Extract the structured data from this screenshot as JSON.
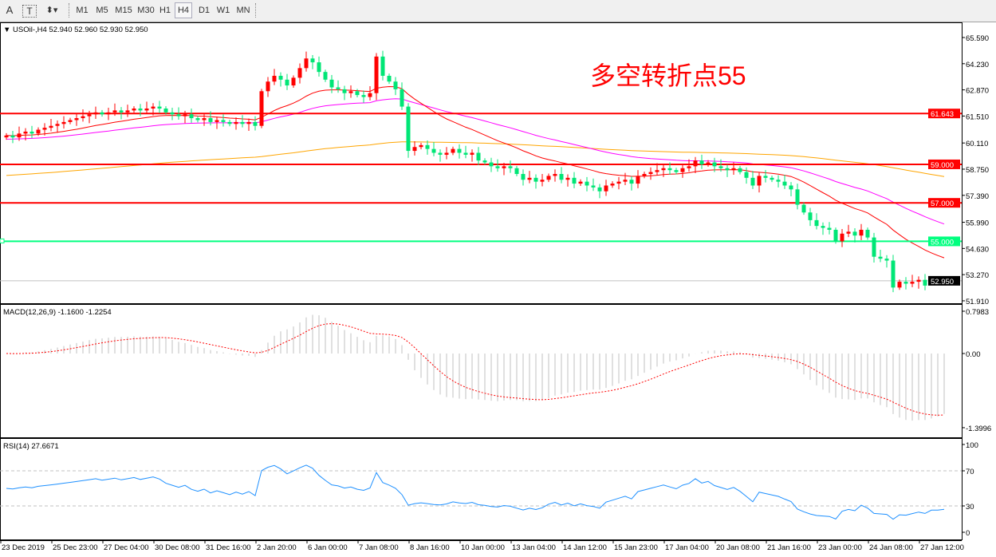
{
  "toolbar": {
    "tools": [
      {
        "label": "A",
        "icon": "text-icon"
      },
      {
        "label": "T",
        "icon": "text-label-icon"
      },
      {
        "label": "",
        "icon": "arrows-dropdown-icon"
      }
    ],
    "timeframes": [
      "M1",
      "M5",
      "M15",
      "M30",
      "H1",
      "H4",
      "D1",
      "W1",
      "MN"
    ],
    "active_timeframe": "H4"
  },
  "main": {
    "header": "USOil-,H4  52.940 52.960 52.930 52.950",
    "annotation": "多空转折点55",
    "annotation_color": "#ff0000",
    "current_price": "52.950",
    "price_ticks": [
      "65.590",
      "64.230",
      "62.870",
      "61.510",
      "60.110",
      "58.750",
      "57.390",
      "55.990",
      "54.630",
      "53.270",
      "51.910"
    ],
    "levels": [
      {
        "value": 61.643,
        "label": "61.643",
        "color": "#ff0000"
      },
      {
        "value": 59.0,
        "label": "59.000",
        "color": "#ff0000"
      },
      {
        "value": 57.0,
        "label": "57.000",
        "color": "#ff0000"
      },
      {
        "value": 55.0,
        "label": "55.000",
        "color": "#00ff7f"
      }
    ],
    "up_color": "#ff0000",
    "down_color": "#00e676"
  },
  "macd": {
    "header": "MACD(12,26,9) -1.1600 -1.2254",
    "ticks": [
      "0.7983",
      "0.00",
      "-1.3996"
    ]
  },
  "rsi": {
    "header": "RSI(14) 27.6671",
    "ticks": [
      "100",
      "70",
      "30",
      "0"
    ]
  },
  "time_axis": [
    "23 Dec 2019",
    "25 Dec 23:00",
    "27 Dec 04:00",
    "30 Dec 08:00",
    "31 Dec 16:00",
    "2 Jan 20:00",
    "6 Jan 00:00",
    "7 Jan 08:00",
    "8 Jan 16:00",
    "10 Jan 00:00",
    "13 Jan 04:00",
    "14 Jan 12:00",
    "15 Jan 23:00",
    "17 Jan 04:00",
    "20 Jan 08:00",
    "21 Jan 16:00",
    "23 Jan 00:00",
    "24 Jan 08:00",
    "27 Jan 12:00"
  ],
  "chart_data": {
    "type": "candlestick",
    "symbol": "USOil-",
    "timeframe": "H4",
    "ylim": [
      51.91,
      65.59
    ],
    "closes": [
      60.5,
      60.4,
      60.6,
      60.7,
      60.6,
      60.8,
      60.9,
      61.0,
      61.1,
      61.2,
      61.3,
      61.4,
      61.5,
      61.6,
      61.7,
      61.6,
      61.7,
      61.8,
      61.7,
      61.8,
      61.9,
      61.8,
      61.9,
      62.0,
      61.9,
      61.7,
      61.6,
      61.5,
      61.6,
      61.4,
      61.3,
      61.4,
      61.2,
      61.3,
      61.2,
      61.1,
      61.2,
      61.1,
      61.2,
      61.0,
      62.8,
      63.3,
      63.6,
      63.4,
      63.1,
      63.5,
      64.0,
      64.5,
      64.3,
      63.8,
      63.4,
      63.0,
      62.9,
      62.7,
      62.8,
      62.6,
      62.5,
      62.7,
      64.6,
      63.6,
      63.3,
      62.9,
      62.0,
      59.7,
      59.9,
      60.0,
      59.8,
      59.6,
      59.5,
      59.6,
      59.8,
      59.6,
      59.5,
      59.6,
      59.2,
      59.1,
      58.9,
      58.8,
      58.9,
      58.8,
      58.5,
      58.2,
      58.3,
      58.1,
      58.2,
      58.4,
      58.5,
      58.2,
      58.3,
      58.0,
      58.1,
      57.9,
      57.8,
      57.6,
      57.9,
      58.0,
      58.1,
      58.2,
      58.0,
      58.4,
      58.5,
      58.6,
      58.7,
      58.8,
      58.7,
      58.6,
      58.8,
      58.9,
      59.2,
      59.0,
      59.1,
      58.9,
      58.8,
      58.7,
      58.8,
      58.6,
      58.3,
      57.9,
      58.4,
      58.3,
      58.2,
      58.1,
      57.9,
      57.7,
      56.9,
      56.5,
      56.1,
      55.8,
      55.7,
      55.6,
      55.0,
      55.4,
      55.5,
      55.3,
      55.6,
      55.2,
      54.2,
      54.1,
      54.0,
      52.6,
      52.9,
      52.8,
      52.9,
      53.0,
      52.7,
      52.9,
      52.9,
      52.95
    ],
    "moving_averages": [
      {
        "color": "#ff0000"
      },
      {
        "color": "#ff00ff"
      },
      {
        "color": "#ffa500"
      }
    ],
    "macd_ylim": [
      -1.3996,
      0.7983
    ],
    "rsi_levels": [
      70,
      30
    ],
    "rsi_color": "#1e90ff"
  }
}
